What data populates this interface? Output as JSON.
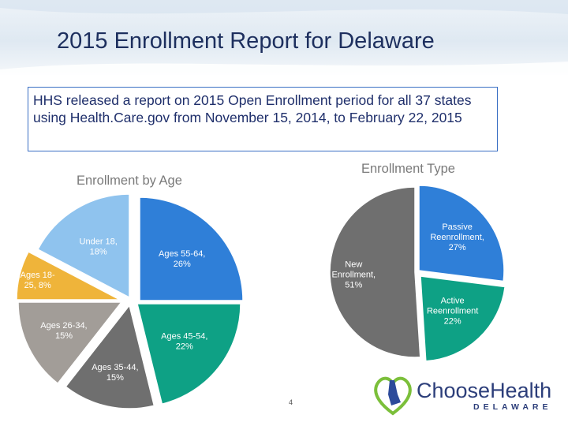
{
  "slide": {
    "title": "2015 Enrollment Report for Delaware",
    "note": "HHS released a report on 2015 Open Enrollment period for all 37 states using Health.Care.gov from November 15, 2014, to February 22, 2015",
    "page_number": "4"
  },
  "logo": {
    "text": "ChooseHealth",
    "subtitle": "DELAWARE",
    "icon": "delaware-heart-icon"
  },
  "colors": {
    "blue": "#2f7fd8",
    "teal": "#0ea185",
    "darkgray": "#6f6f6f",
    "lightgray": "#a29d98",
    "gold": "#efb43a",
    "lightblue": "#8fc3ee",
    "title": "#1d2f5e"
  },
  "chart_data": [
    {
      "type": "pie",
      "title": "Enrollment by Age",
      "slices": [
        {
          "label": "Ages 55-64,",
          "pct": "26%",
          "value": 26
        },
        {
          "label": "Ages 45-54,",
          "pct": "22%",
          "value": 22
        },
        {
          "label": "Ages 35-44,",
          "pct": "15%",
          "value": 15
        },
        {
          "label": "Ages 26-34,",
          "pct": "15%",
          "value": 15
        },
        {
          "label": "Ages 18-",
          "label2": "25,",
          "pct": "8%",
          "value": 8
        },
        {
          "label": "Under 18,",
          "pct": "18%",
          "value": 18
        }
      ]
    },
    {
      "type": "pie",
      "title": "Enrollment Type",
      "slices": [
        {
          "label": "Passive",
          "label2": "Reenrollment,",
          "pct": "27%",
          "value": 27
        },
        {
          "label": "Active",
          "label2": "Reenrollment",
          "pct": "22%",
          "value": 22
        },
        {
          "label": "New",
          "label2": "Enrollment,",
          "pct": "51%",
          "value": 51
        }
      ]
    }
  ]
}
